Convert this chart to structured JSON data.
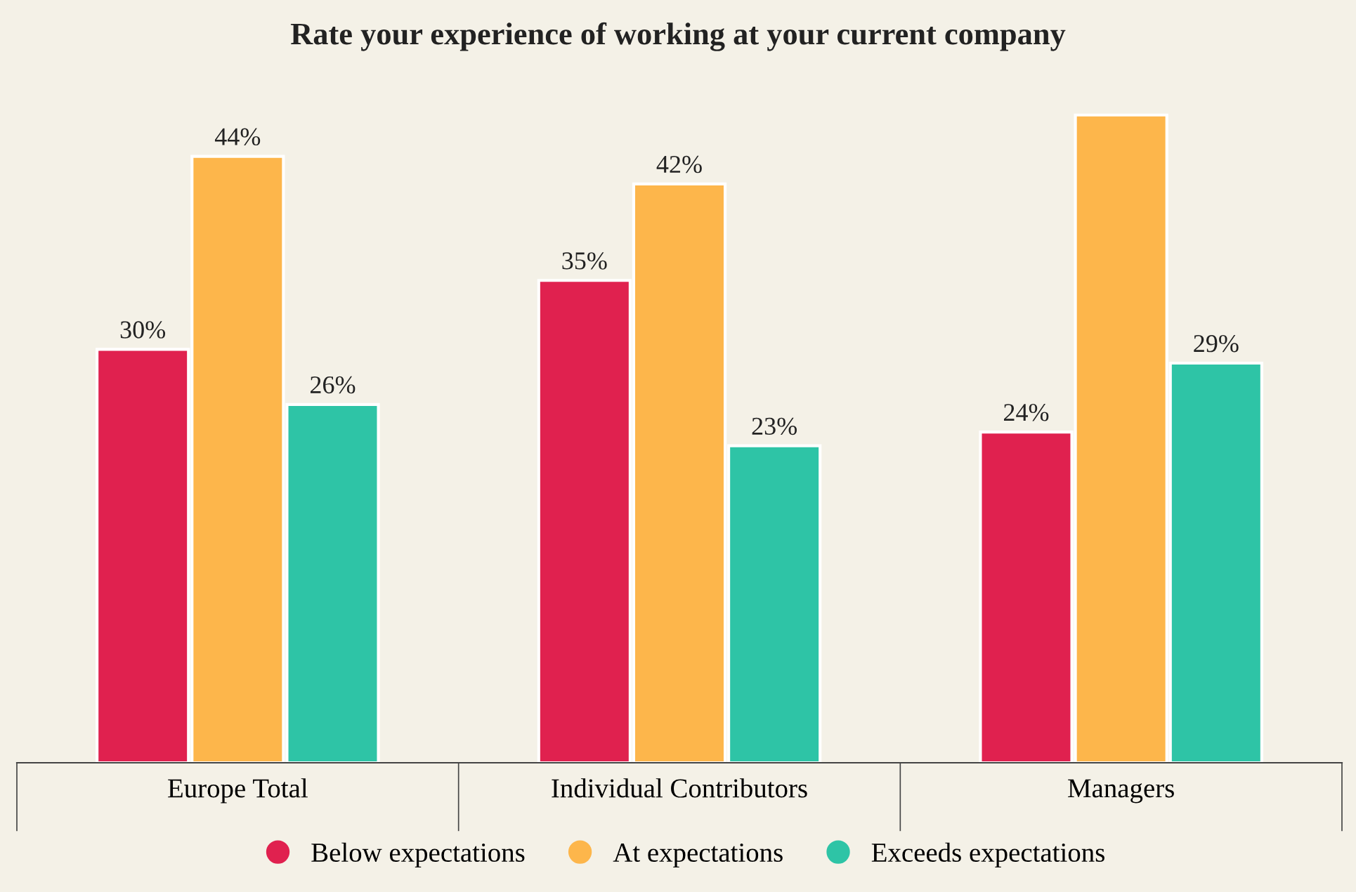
{
  "chart_data": {
    "type": "bar",
    "title": "Rate your experience of working at your current company",
    "categories": [
      "Europe Total",
      "Individual Contributors",
      "Managers"
    ],
    "series": [
      {
        "name": "Below expectations",
        "color": "#e0214f",
        "values": [
          30,
          35,
          24
        ],
        "value_labels": [
          "30%",
          "35%",
          "24%"
        ]
      },
      {
        "name": "At expectations",
        "color": "#fdb64b",
        "values": [
          44,
          42,
          47
        ],
        "value_labels": [
          "44%",
          "42%",
          null
        ]
      },
      {
        "name": "Exceeds expectations",
        "color": "#2ec4a6",
        "values": [
          26,
          23,
          29
        ],
        "value_labels": [
          "26%",
          "23%",
          "29%"
        ]
      }
    ],
    "legend": "bottom",
    "marker": "circle",
    "grid": false
  }
}
